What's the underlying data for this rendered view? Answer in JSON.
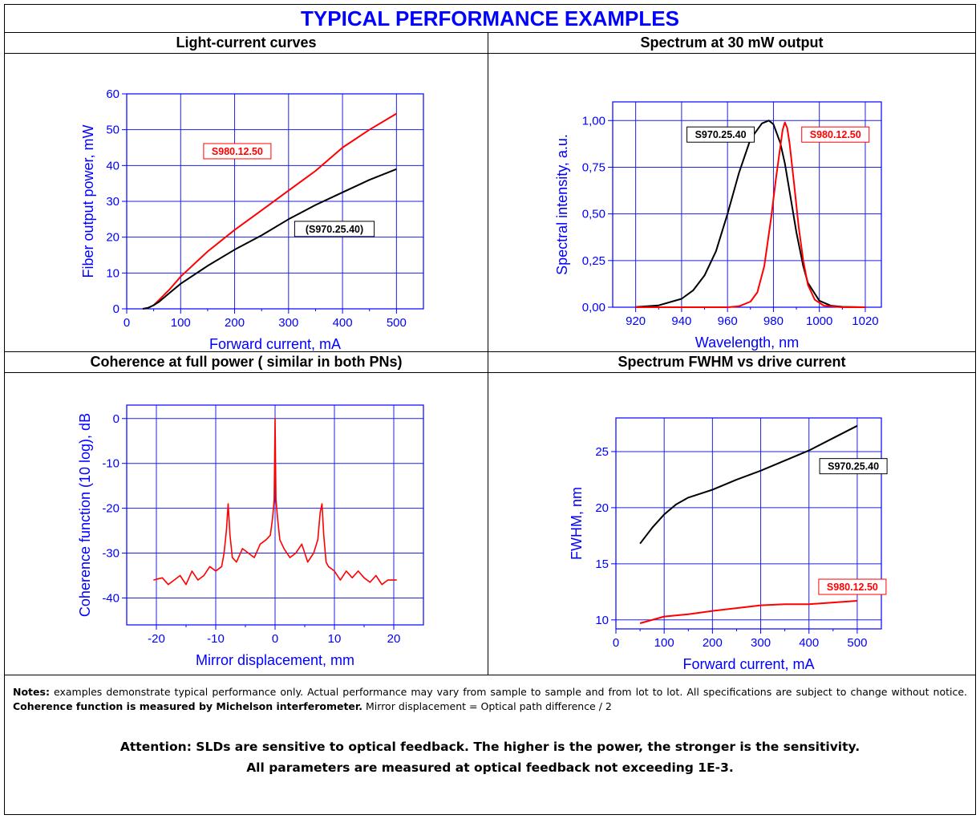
{
  "header": {
    "title": "TYPICAL PERFORMANCE EXAMPLES"
  },
  "chart_data": [
    {
      "type": "line",
      "panel_title": "Light-current curves",
      "xlabel": "Forward current, mA",
      "ylabel": "Fiber output power, mW",
      "xlim": [
        0,
        550
      ],
      "ylim": [
        0,
        60
      ],
      "xticks": [
        0,
        100,
        200,
        300,
        400,
        500
      ],
      "yticks": [
        0,
        10,
        20,
        30,
        40,
        50,
        60
      ],
      "grid": true,
      "series": [
        {
          "name": "S980.12.50",
          "color": "#ff0000",
          "x": [
            30,
            40,
            50,
            60,
            80,
            100,
            150,
            200,
            250,
            300,
            350,
            400,
            450,
            500
          ],
          "y": [
            0,
            0.3,
            1,
            2.5,
            5.5,
            9,
            16,
            22,
            27.5,
            33,
            38.5,
            45,
            50,
            54.5
          ]
        },
        {
          "name": "S970.25.40",
          "color": "#000000",
          "x": [
            30,
            40,
            50,
            60,
            80,
            100,
            150,
            200,
            250,
            300,
            350,
            400,
            450,
            500
          ],
          "y": [
            0,
            0.3,
            1,
            2,
            4.5,
            7,
            12,
            16.5,
            20.5,
            25,
            29,
            32.5,
            36,
            39
          ]
        }
      ],
      "annotations": [
        {
          "text": "S980.12.50",
          "color": "#ff0000",
          "x": 205,
          "y": 44
        },
        {
          "text": "(S970.25.40)",
          "color": "#000000",
          "x": 385,
          "y": 22.3
        }
      ]
    },
    {
      "type": "line",
      "panel_title": "Spectrum at 30 mW output",
      "xlabel": "Wavelength, nm",
      "ylabel": "Spectral intensity, a.u.",
      "xlim": [
        910,
        1027
      ],
      "ylim": [
        0,
        1.1
      ],
      "xticks": [
        920,
        940,
        960,
        980,
        1000,
        1020
      ],
      "yticks": [
        0,
        0.25,
        0.5,
        0.75,
        1.0
      ],
      "ytick_labels": [
        "0,00",
        "0,25",
        "0,50",
        "0,75",
        "1,00"
      ],
      "grid": true,
      "series": [
        {
          "name": "S970.25.40",
          "color": "#000000",
          "x": [
            920,
            930,
            940,
            945,
            950,
            955,
            960,
            965,
            970,
            975,
            978,
            980,
            983,
            985,
            988,
            990,
            993,
            995,
            1000,
            1005,
            1010,
            1020
          ],
          "y": [
            0.001,
            0.01,
            0.045,
            0.09,
            0.17,
            0.3,
            0.5,
            0.72,
            0.9,
            0.985,
            1.0,
            0.98,
            0.88,
            0.77,
            0.55,
            0.4,
            0.22,
            0.13,
            0.035,
            0.008,
            0.002,
            0
          ]
        },
        {
          "name": "S980.12.50",
          "color": "#ff0000",
          "x": [
            920,
            960,
            965,
            970,
            973,
            976,
            979,
            981,
            983,
            984,
            985,
            986,
            987,
            989,
            991,
            993,
            995,
            998,
            1002,
            1010,
            1020
          ],
          "y": [
            0,
            0,
            0.005,
            0.03,
            0.08,
            0.22,
            0.48,
            0.68,
            0.86,
            0.95,
            0.99,
            0.96,
            0.88,
            0.66,
            0.43,
            0.25,
            0.12,
            0.04,
            0.008,
            0,
            0
          ]
        }
      ],
      "annotations": [
        {
          "text": "S970.25.40",
          "color": "#000000",
          "x": 957,
          "y": 0.925
        },
        {
          "text": "S980.12.50",
          "color": "#ff0000",
          "x": 1007,
          "y": 0.925
        }
      ]
    },
    {
      "type": "line",
      "panel_title": "Coherence at full power ( similar in both PNs)",
      "xlabel": "Mirror displacement, mm",
      "ylabel": "Coherence function (10 log), dB",
      "xlim": [
        -25,
        25
      ],
      "ylim": [
        -46,
        3
      ],
      "xticks": [
        -20,
        -10,
        0,
        10,
        20
      ],
      "yticks": [
        -40,
        -30,
        -20,
        -10,
        0
      ],
      "grid": true,
      "series": [
        {
          "name": "",
          "color": "#ff0000",
          "x": [
            -20.5,
            -19,
            -18,
            -17,
            -16,
            -15,
            -14,
            -13,
            -12,
            -11,
            -10,
            -9,
            -8.6,
            -8.2,
            -7.9,
            -7.6,
            -7.2,
            -6.5,
            -5.5,
            -4.5,
            -3.5,
            -2.5,
            -1.5,
            -0.8,
            -0.4,
            -0.15,
            0,
            0.15,
            0.4,
            0.8,
            1.5,
            2.5,
            3.5,
            4.5,
            5.5,
            6.5,
            7.2,
            7.6,
            7.9,
            8.2,
            8.6,
            9,
            10,
            11,
            12,
            13,
            14,
            15,
            16,
            17,
            18,
            19,
            20.5
          ],
          "y": [
            -36,
            -35.5,
            -37,
            -36,
            -35,
            -37,
            -34,
            -36,
            -35,
            -33,
            -34,
            -33,
            -30,
            -25,
            -19,
            -26,
            -31,
            -32,
            -29,
            -30,
            -31,
            -28,
            -27,
            -26,
            -22,
            -18,
            0,
            -18,
            -22,
            -27,
            -29,
            -31,
            -30,
            -28,
            -32,
            -30,
            -27,
            -21,
            -19,
            -26,
            -32,
            -33,
            -34,
            -36,
            -34,
            -35.5,
            -34,
            -35.5,
            -36.5,
            -35,
            -37,
            -36,
            -36
          ]
        }
      ]
    },
    {
      "type": "line",
      "panel_title": "Spectrum FWHM vs drive current",
      "xlabel": "Forward current, mA",
      "ylabel": "FWHM, nm",
      "xlim": [
        0,
        550
      ],
      "ylim": [
        9.2,
        28
      ],
      "xticks": [
        0,
        100,
        200,
        300,
        400,
        500
      ],
      "yticks": [
        10,
        15,
        20,
        25
      ],
      "grid": true,
      "series": [
        {
          "name": "S970.25.40",
          "color": "#000000",
          "x": [
            50,
            75,
            100,
            125,
            150,
            175,
            200,
            250,
            300,
            350,
            400,
            450,
            500
          ],
          "y": [
            16.8,
            18.2,
            19.4,
            20.3,
            20.9,
            21.25,
            21.6,
            22.5,
            23.3,
            24.2,
            25.1,
            26.2,
            27.3
          ]
        },
        {
          "name": "S980.12.50",
          "color": "#ff0000",
          "x": [
            50,
            100,
            150,
            200,
            250,
            300,
            350,
            400,
            450,
            500
          ],
          "y": [
            9.7,
            10.3,
            10.5,
            10.8,
            11.05,
            11.3,
            11.4,
            11.4,
            11.55,
            11.7
          ]
        }
      ],
      "annotations": [
        {
          "text": "S970.25.40",
          "color": "#000000",
          "x": 492,
          "y": 23.7
        },
        {
          "text": "S980.12.50",
          "color": "#ff0000",
          "x": 490,
          "y": 12.95
        }
      ]
    }
  ],
  "notes": {
    "label": "Notes:",
    "text1": " examples demonstrate typical performance only. Actual performance may vary from sample to sample and from lot to lot. All specifications are subject to change without notice. ",
    "bold": "Coherence function is measured by Michelson interferometer.",
    "text2": " Mirror displacement = Optical path difference / 2"
  },
  "attention": {
    "label": "Attention",
    "line1": ": SLDs are sensitive to optical feedback. The higher is the power, the stronger is the sensitivity.",
    "line2": "All parameters are measured at optical feedback not exceeding 1E-3."
  }
}
